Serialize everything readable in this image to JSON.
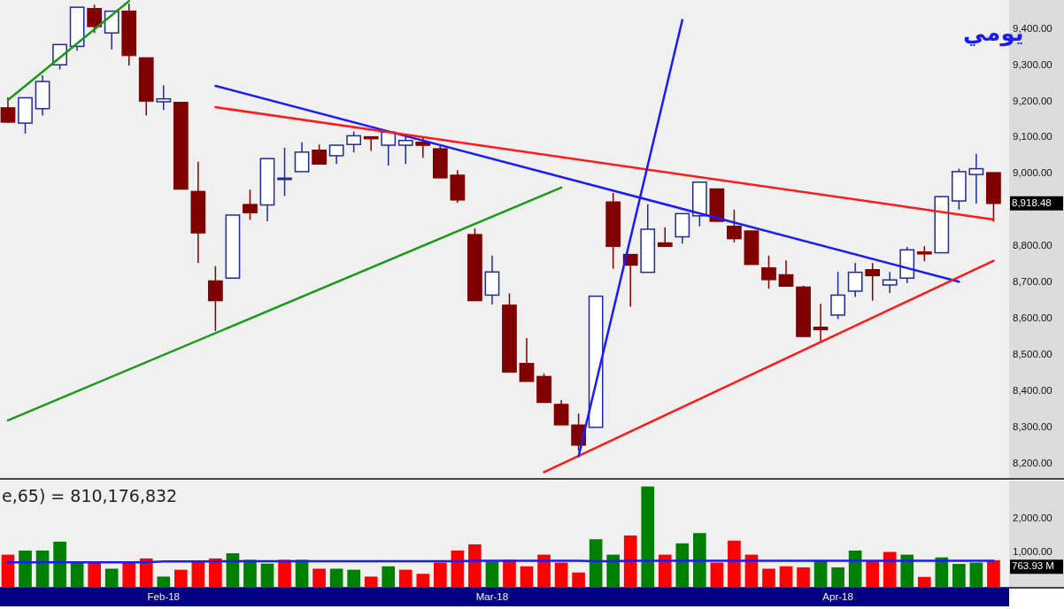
{
  "chart_data": [
    {
      "type": "candlestick",
      "title": "يومي",
      "categories": [
        null,
        null,
        null,
        null,
        null,
        null,
        null,
        null,
        null,
        null,
        null,
        null,
        null,
        null,
        null,
        null,
        null,
        null,
        null,
        null,
        null,
        null,
        null,
        null,
        null,
        null,
        null,
        null,
        null,
        null,
        null,
        null,
        null,
        null,
        null,
        null,
        null,
        null,
        null,
        null,
        null,
        null,
        null,
        null,
        null,
        null,
        null,
        null,
        null,
        null,
        null,
        null,
        null,
        null,
        null,
        null,
        null,
        null
      ],
      "tick_labels": "y",
      "ylim": [
        8160,
        9480
      ],
      "yticks": [
        {
          "value": 8200,
          "label": "8,200.00"
        },
        {
          "value": 8300,
          "label": "8,300.00"
        },
        {
          "value": 8400,
          "label": "8,400.00"
        },
        {
          "value": 8500,
          "label": "8,500.00"
        },
        {
          "value": 8600,
          "label": "8,600.00"
        },
        {
          "value": 8700,
          "label": "8,700.00"
        },
        {
          "value": 8800,
          "label": "8,800.00"
        },
        {
          "value": 9000,
          "label": "9,000.00"
        },
        {
          "value": 9100,
          "label": "9,100.00"
        },
        {
          "value": 9200,
          "label": "9,200.00"
        },
        {
          "value": 9300,
          "label": "9,300.00"
        },
        {
          "value": 9400,
          "label": "9,400.00"
        }
      ],
      "series": [
        {
          "ohlc": [
            [
              9182,
              9211,
              9140,
              9143
            ],
            [
              9140,
              9210,
              9111,
              9210
            ],
            [
              9180,
              9272,
              9161,
              9255
            ],
            [
              9301,
              9357,
              9288,
              9357
            ],
            [
              9352,
              9460,
              9340,
              9460
            ],
            [
              9456,
              9467,
              9389,
              9407
            ],
            [
              9389,
              9449,
              9344,
              9449
            ],
            [
              9449,
              9470,
              9299,
              9327
            ],
            [
              9320,
              9320,
              9161,
              9201
            ],
            [
              9199,
              9245,
              9176,
              9207
            ],
            [
              9197,
              9199,
              8958,
              8958
            ],
            [
              8951,
              9033,
              8754,
              8837
            ],
            [
              8704,
              8745,
              8566,
              8650
            ],
            [
              8712,
              8886,
              8712,
              8886
            ],
            [
              8915,
              8956,
              8873,
              8893
            ],
            [
              8914,
              9042,
              8869,
              9042
            ],
            [
              8985,
              9072,
              8939,
              8988
            ],
            [
              9006,
              9087,
              9006,
              9060
            ],
            [
              9065,
              9081,
              9027,
              9027
            ],
            [
              9050,
              9079,
              9027,
              9079
            ],
            [
              9081,
              9117,
              9059,
              9105
            ],
            [
              9102,
              9102,
              9063,
              9097
            ],
            [
              9079,
              9115,
              9023,
              9115
            ],
            [
              9079,
              9107,
              9027,
              9092
            ],
            [
              9087,
              9102,
              9044,
              9079
            ],
            [
              9069,
              9081,
              8989,
              8989
            ],
            [
              8996,
              9010,
              8920,
              8928
            ],
            [
              8832,
              8849,
              8650,
              8650
            ],
            [
              8665,
              8774,
              8639,
              8729
            ],
            [
              8637,
              8670,
              8453,
              8453
            ],
            [
              8476,
              8546,
              8427,
              8427
            ],
            [
              8440,
              8448,
              8369,
              8369
            ],
            [
              8363,
              8375,
              8307,
              8307
            ],
            [
              8306,
              8338,
              8235,
              8251
            ],
            [
              8300,
              8662,
              8300,
              8662
            ],
            [
              8922,
              8947,
              8738,
              8800
            ],
            [
              8777,
              8777,
              8633,
              8748
            ],
            [
              8728,
              8916,
              8728,
              8847
            ],
            [
              8809,
              8852,
              8800,
              8800
            ],
            [
              8826,
              8890,
              8807,
              8890
            ],
            [
              8884,
              8977,
              8855,
              8977
            ],
            [
              8958,
              8958,
              8869,
              8869
            ],
            [
              8855,
              8901,
              8811,
              8821
            ],
            [
              8842,
              8842,
              8750,
              8750
            ],
            [
              8740,
              8774,
              8683,
              8708
            ],
            [
              8721,
              8761,
              8690,
              8690
            ],
            [
              8687,
              8691,
              8551,
              8551
            ],
            [
              8576,
              8641,
              8539,
              8570
            ],
            [
              8610,
              8729,
              8599,
              8665
            ],
            [
              8676,
              8754,
              8660,
              8728
            ],
            [
              8735,
              8754,
              8650,
              8719
            ],
            [
              8693,
              8729,
              8671,
              8707
            ],
            [
              8712,
              8798,
              8698,
              8790
            ],
            [
              8784,
              8800,
              8759,
              8779
            ],
            [
              8782,
              8937,
              8782,
              8937
            ],
            [
              8925,
              9014,
              8901,
              9006
            ],
            [
              8998,
              9055,
              8918,
              9014
            ],
            [
              9003,
              9003,
              8868,
              8918.48
            ]
          ],
          "colors": [
            "#800000",
            "#1f2a9e",
            "#1f2a9e",
            "#1f2a9e",
            "#1f2a9e",
            "#800000",
            "#1f2a9e",
            "#800000",
            "#800000",
            "#1f2a9e",
            "#800000",
            "#800000",
            "#800000",
            "#1f2a9e",
            "#800000",
            "#1f2a9e",
            "#1f2a9e",
            "#1f2a9e",
            "#800000",
            "#1f2a9e",
            "#1f2a9e",
            "#800000",
            "#1f2a9e",
            "#1f2a9e",
            "#800000",
            "#800000",
            "#800000",
            "#800000",
            "#1f2a9e",
            "#800000",
            "#800000",
            "#800000",
            "#800000",
            "#800000",
            "#1f2a9e",
            "#800000",
            "#800000",
            "#1f2a9e",
            "#800000",
            "#1f2a9e",
            "#1f2a9e",
            "#800000",
            "#800000",
            "#800000",
            "#800000",
            "#800000",
            "#800000",
            "#800000",
            "#1f2a9e",
            "#1f2a9e",
            "#800000",
            "#1f2a9e",
            "#1f2a9e",
            "#800000",
            "#1f2a9e",
            "#1f2a9e",
            "#1f2a9e",
            "#800000"
          ]
        },
        {
          "type": "line",
          "values": [
            9204,
            null,
            null,
            null,
            null,
            null,
            null,
            9477,
            null,
            null,
            null,
            null,
            null,
            null,
            null,
            null,
            null,
            null,
            null,
            null,
            null,
            null,
            null,
            null,
            null,
            null,
            null,
            null,
            null,
            null,
            null,
            null,
            null,
            null,
            null,
            null,
            null,
            null,
            null,
            null,
            null,
            null,
            null,
            null,
            null,
            null,
            null,
            null,
            null,
            null,
            null,
            null,
            null,
            null,
            null,
            null,
            null,
            null
          ],
          "color": "#1a9a1a"
        },
        {
          "type": "line",
          "values": [
            8319,
            null,
            null,
            null,
            null,
            null,
            null,
            null,
            null,
            null,
            null,
            null,
            null,
            null,
            null,
            null,
            null,
            null,
            null,
            null,
            null,
            null,
            null,
            null,
            null,
            null,
            null,
            null,
            null,
            null,
            null,
            null,
            8962,
            null,
            null,
            null,
            null,
            null,
            null,
            null,
            null,
            null,
            null,
            null,
            null,
            null,
            null,
            null,
            null,
            null,
            null,
            null,
            null,
            null,
            null,
            null,
            null,
            null
          ],
          "color": "#1a9a1a"
        },
        {
          "type": "line",
          "values": [
            null,
            null,
            null,
            null,
            null,
            null,
            null,
            null,
            null,
            null,
            null,
            null,
            9243,
            null,
            null,
            null,
            null,
            null,
            null,
            null,
            null,
            null,
            null,
            null,
            null,
            null,
            null,
            null,
            null,
            null,
            null,
            null,
            null,
            null,
            null,
            null,
            null,
            null,
            null,
            null,
            null,
            null,
            null,
            null,
            null,
            null,
            null,
            null,
            null,
            null,
            null,
            null,
            null,
            null,
            null,
            8702,
            null,
            null
          ],
          "color": "#1a1aff"
        },
        {
          "type": "line",
          "values": [
            null,
            null,
            null,
            null,
            null,
            null,
            null,
            null,
            null,
            null,
            null,
            null,
            9184,
            null,
            null,
            null,
            null,
            null,
            null,
            null,
            null,
            null,
            null,
            null,
            null,
            null,
            null,
            null,
            null,
            null,
            null,
            null,
            null,
            null,
            null,
            null,
            null,
            null,
            null,
            null,
            null,
            null,
            null,
            null,
            null,
            null,
            null,
            null,
            null,
            null,
            null,
            null,
            null,
            null,
            null,
            null,
            null,
            8874
          ],
          "color": "#ff1a1a"
        },
        {
          "type": "line",
          "values": [
            null,
            null,
            null,
            null,
            null,
            null,
            null,
            null,
            null,
            null,
            null,
            null,
            null,
            null,
            null,
            null,
            null,
            null,
            null,
            null,
            null,
            null,
            null,
            null,
            null,
            null,
            null,
            null,
            null,
            null,
            null,
            8176,
            null,
            null,
            null,
            null,
            null,
            null,
            null,
            null,
            null,
            null,
            null,
            null,
            null,
            null,
            null,
            null,
            null,
            null,
            null,
            null,
            null,
            null,
            null,
            null,
            null,
            8760
          ],
          "color": "#ff1a1a"
        },
        {
          "type": "line",
          "values": [
            null,
            null,
            null,
            null,
            null,
            null,
            null,
            null,
            null,
            null,
            null,
            null,
            null,
            null,
            null,
            null,
            null,
            null,
            null,
            null,
            null,
            null,
            null,
            null,
            null,
            null,
            null,
            null,
            null,
            null,
            null,
            null,
            null,
            8220,
            null,
            null,
            null,
            null,
            null,
            9425,
            null,
            null,
            null,
            null,
            null,
            null,
            null,
            null,
            null,
            null,
            null,
            null,
            null,
            null,
            null,
            null,
            null,
            null
          ],
          "color": "#1a1aff"
        }
      ],
      "annotations": [
        "8,918.48"
      ]
    },
    {
      "type": "bar",
      "categories": [
        null,
        null,
        null,
        null,
        null,
        null,
        null,
        null,
        null,
        "Feb-18",
        null,
        null,
        null,
        null,
        null,
        null,
        null,
        null,
        null,
        null,
        null,
        null,
        null,
        null,
        null,
        null,
        null,
        null,
        "Mar-18",
        null,
        null,
        null,
        null,
        null,
        null,
        null,
        null,
        null,
        null,
        null,
        null,
        null,
        null,
        null,
        null,
        null,
        null,
        null,
        "Apr-18",
        null,
        null,
        null,
        null,
        null,
        null,
        null,
        null,
        null
      ],
      "ylim": [
        0,
        3100
      ],
      "yticks": [
        {
          "value": 1000,
          "label": "1,000.00"
        },
        {
          "value": 2000,
          "label": "2,000.00"
        }
      ],
      "series": [
        {
          "values": [
            940,
            1060,
            1060,
            1320,
            740,
            740,
            530,
            740,
            830,
            300,
            500,
            740,
            830,
            980,
            790,
            680,
            790,
            790,
            530,
            530,
            500,
            300,
            600,
            500,
            380,
            710,
            1060,
            1240,
            740,
            790,
            600,
            940,
            710,
            420,
            1390,
            940,
            1500,
            2930,
            940,
            1270,
            1570,
            710,
            1350,
            940,
            530,
            600,
            570,
            780,
            570,
            1060,
            750,
            1020,
            940,
            290,
            860,
            670,
            710,
            780
          ],
          "colors": [
            "#ff0000",
            "#008000",
            "#008000",
            "#008000",
            "#008000",
            "#ff0000",
            "#008000",
            "#ff0000",
            "#ff0000",
            "#008000",
            "#ff0000",
            "#ff0000",
            "#ff0000",
            "#008000",
            "#008000",
            "#008000",
            "#ff0000",
            "#008000",
            "#ff0000",
            "#008000",
            "#008000",
            "#ff0000",
            "#008000",
            "#ff0000",
            "#ff0000",
            "#ff0000",
            "#ff0000",
            "#ff0000",
            "#008000",
            "#ff0000",
            "#ff0000",
            "#ff0000",
            "#ff0000",
            "#ff0000",
            "#008000",
            "#008000",
            "#ff0000",
            "#008000",
            "#ff0000",
            "#008000",
            "#008000",
            "#ff0000",
            "#ff0000",
            "#ff0000",
            "#ff0000",
            "#ff0000",
            "#ff0000",
            "#008000",
            "#008000",
            "#008000",
            "#ff0000",
            "#ff0000",
            "#008000",
            "#ff0000",
            "#008000",
            "#008000",
            "#008000",
            "#ff0000"
          ]
        },
        {
          "type": "line",
          "values": [
            720,
            720,
            720,
            720,
            720,
            720,
            720,
            720,
            720,
            740,
            740,
            740,
            740,
            750,
            750,
            750,
            750,
            750,
            750,
            750,
            750,
            750,
            750,
            750,
            750,
            750,
            750,
            760,
            760,
            760,
            760,
            760,
            760,
            760,
            750,
            750,
            760,
            760,
            760,
            760,
            760,
            760,
            760,
            760,
            760,
            760,
            760,
            760,
            760,
            760,
            760,
            760,
            760,
            760,
            760,
            760,
            760,
            763.93
          ],
          "color": "#1a1aff"
        }
      ],
      "annotations": [
        "e,65) = 810,176,832",
        "763.93 M"
      ]
    }
  ]
}
